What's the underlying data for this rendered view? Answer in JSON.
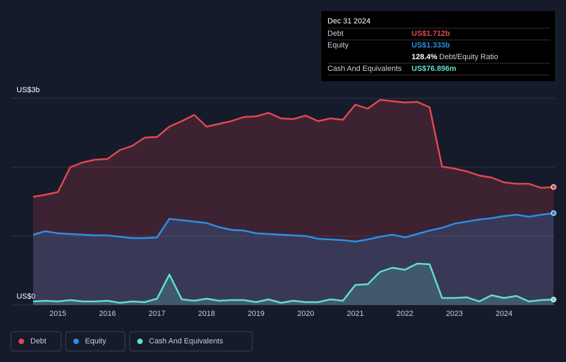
{
  "chart_data": {
    "type": "line",
    "x": [
      2014.5,
      2014.75,
      2015,
      2015.25,
      2015.5,
      2015.75,
      2016,
      2016.25,
      2016.5,
      2016.75,
      2017,
      2017.25,
      2017.5,
      2017.75,
      2018,
      2018.25,
      2018.5,
      2018.75,
      2019,
      2019.25,
      2019.5,
      2019.75,
      2020,
      2020.25,
      2020.5,
      2020.75,
      2021,
      2021.25,
      2021.5,
      2021.75,
      2022,
      2022.25,
      2022.5,
      2022.75,
      2023,
      2023.25,
      2023.5,
      2023.75,
      2024,
      2024.25,
      2024.5,
      2024.75,
      2025
    ],
    "series": [
      {
        "name": "Debt",
        "color": "#e2474f",
        "values": [
          1.57,
          1.6,
          1.64,
          2.0,
          2.07,
          2.11,
          2.12,
          2.25,
          2.31,
          2.43,
          2.44,
          2.59,
          2.67,
          2.76,
          2.59,
          2.63,
          2.67,
          2.73,
          2.74,
          2.79,
          2.71,
          2.7,
          2.75,
          2.67,
          2.71,
          2.69,
          2.91,
          2.85,
          2.98,
          2.96,
          2.94,
          2.95,
          2.87,
          2.01,
          1.98,
          1.94,
          1.88,
          1.85,
          1.78,
          1.76,
          1.76,
          1.7,
          1.712
        ]
      },
      {
        "name": "Equity",
        "color": "#2d8ee8",
        "values": [
          1.02,
          1.07,
          1.04,
          1.03,
          1.02,
          1.01,
          1.01,
          0.99,
          0.97,
          0.97,
          0.98,
          1.25,
          1.23,
          1.21,
          1.19,
          1.13,
          1.09,
          1.08,
          1.04,
          1.03,
          1.02,
          1.01,
          1.0,
          0.96,
          0.95,
          0.94,
          0.92,
          0.95,
          0.99,
          1.02,
          0.98,
          1.03,
          1.08,
          1.12,
          1.18,
          1.21,
          1.24,
          1.26,
          1.29,
          1.31,
          1.28,
          1.31,
          1.333
        ]
      },
      {
        "name": "Cash And Equivalents",
        "color": "#5fe0c8",
        "values": [
          0.05,
          0.06,
          0.05,
          0.07,
          0.05,
          0.05,
          0.06,
          0.03,
          0.05,
          0.04,
          0.09,
          0.44,
          0.08,
          0.06,
          0.09,
          0.06,
          0.07,
          0.07,
          0.04,
          0.08,
          0.03,
          0.06,
          0.04,
          0.04,
          0.08,
          0.06,
          0.29,
          0.3,
          0.48,
          0.54,
          0.51,
          0.6,
          0.59,
          0.1,
          0.1,
          0.11,
          0.05,
          0.14,
          0.1,
          0.13,
          0.05,
          0.07,
          0.076896
        ]
      }
    ],
    "xlim": [
      2014.5,
      2025
    ],
    "xticks": [
      2015,
      2016,
      2017,
      2018,
      2019,
      2020,
      2021,
      2022,
      2023,
      2024
    ],
    "ylim": [
      0,
      3
    ],
    "yticks": [
      {
        "value": 0,
        "label": "US$0"
      },
      {
        "value": 3,
        "label": "US$3b"
      }
    ],
    "ygrid": [
      0,
      1,
      2,
      3
    ],
    "tooltip": {
      "date": "Dec 31 2024",
      "rows": [
        {
          "label": "Debt",
          "value": "US$1.712b"
        },
        {
          "label": "Equity",
          "value": "US$1.333b"
        },
        {
          "label": "Debt/Equity Ratio",
          "value": "128.4%"
        },
        {
          "label": "Cash And Equivalents",
          "value": "US$76.896m"
        }
      ]
    }
  }
}
